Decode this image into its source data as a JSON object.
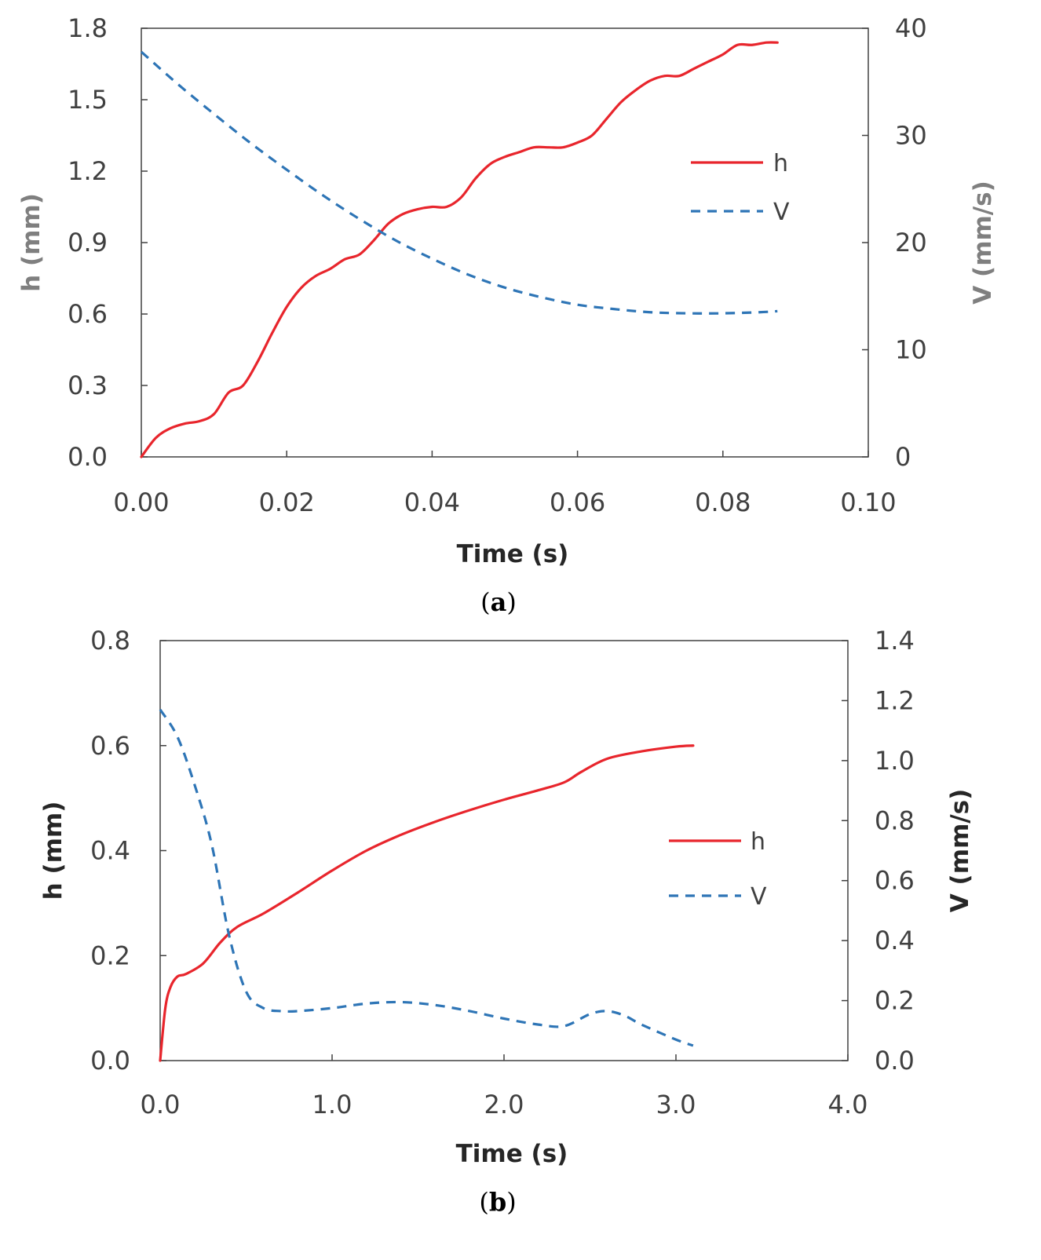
{
  "chart_data": [
    {
      "id": "a",
      "type": "line",
      "caption_letter": "a",
      "xlabel": "Time (s)",
      "ylabel_left": "h (mm)",
      "ylabel_right": "V (mm/s)",
      "xlim": [
        0,
        0.1
      ],
      "ylim_left": [
        0,
        1.8
      ],
      "ylim_right": [
        0,
        40
      ],
      "x_ticks": [
        "0.00",
        "0.02",
        "0.04",
        "0.06",
        "0.08",
        "0.10"
      ],
      "y_left_ticks": [
        "0.0",
        "0.3",
        "0.6",
        "0.9",
        "1.2",
        "1.5",
        "1.8"
      ],
      "y_right_ticks": [
        "0",
        "10",
        "20",
        "30",
        "40"
      ],
      "legend_position": "center-right",
      "axis_label_color": "#7f7f7f",
      "series": [
        {
          "name": "h",
          "axis": "left",
          "color": "#e8252c",
          "style": "solid",
          "x": [
            0,
            0.002,
            0.004,
            0.006,
            0.008,
            0.01,
            0.012,
            0.014,
            0.016,
            0.018,
            0.02,
            0.022,
            0.024,
            0.026,
            0.028,
            0.03,
            0.032,
            0.034,
            0.036,
            0.038,
            0.04,
            0.042,
            0.044,
            0.046,
            0.048,
            0.05,
            0.052,
            0.054,
            0.056,
            0.058,
            0.06,
            0.062,
            0.064,
            0.066,
            0.068,
            0.07,
            0.072,
            0.074,
            0.076,
            0.078,
            0.08,
            0.082,
            0.084,
            0.086,
            0.0875
          ],
          "values": [
            0,
            0.08,
            0.12,
            0.14,
            0.15,
            0.18,
            0.27,
            0.3,
            0.4,
            0.52,
            0.63,
            0.71,
            0.76,
            0.79,
            0.83,
            0.85,
            0.91,
            0.98,
            1.02,
            1.04,
            1.05,
            1.05,
            1.09,
            1.17,
            1.23,
            1.26,
            1.28,
            1.3,
            1.3,
            1.3,
            1.32,
            1.35,
            1.42,
            1.49,
            1.54,
            1.58,
            1.6,
            1.6,
            1.63,
            1.66,
            1.69,
            1.73,
            1.73,
            1.74,
            1.74
          ]
        },
        {
          "name": "V",
          "axis": "right",
          "color": "#2e75b6",
          "style": "dashed",
          "x": [
            0,
            0.005,
            0.01,
            0.015,
            0.02,
            0.025,
            0.03,
            0.035,
            0.04,
            0.045,
            0.05,
            0.055,
            0.06,
            0.065,
            0.07,
            0.075,
            0.08,
            0.085,
            0.0875
          ],
          "values": [
            37.8,
            34.8,
            32.0,
            29.3,
            26.8,
            24.4,
            22.2,
            20.2,
            18.5,
            17.0,
            15.8,
            14.9,
            14.2,
            13.8,
            13.5,
            13.4,
            13.4,
            13.5,
            13.6
          ]
        }
      ]
    },
    {
      "id": "b",
      "type": "line",
      "caption_letter": "b",
      "xlabel": "Time (s)",
      "ylabel_left": "h (mm)",
      "ylabel_right": "V (mm/s)",
      "xlim": [
        0,
        4.0
      ],
      "ylim_left": [
        0,
        0.8
      ],
      "ylim_right": [
        0,
        1.4
      ],
      "x_ticks": [
        "0.0",
        "1.0",
        "2.0",
        "3.0",
        "4.0"
      ],
      "y_left_ticks": [
        "0.0",
        "0.2",
        "0.4",
        "0.6",
        "0.8"
      ],
      "y_right_ticks": [
        "0.0",
        "0.2",
        "0.4",
        "0.6",
        "0.8",
        "1.0",
        "1.2",
        "1.4"
      ],
      "legend_position": "center-right",
      "axis_label_color": "#262626",
      "series": [
        {
          "name": "h",
          "axis": "left",
          "color": "#e8252c",
          "style": "solid",
          "x": [
            0,
            0.03,
            0.06,
            0.1,
            0.15,
            0.25,
            0.35,
            0.45,
            0.6,
            0.8,
            1.0,
            1.2,
            1.4,
            1.6,
            1.8,
            2.0,
            2.2,
            2.35,
            2.45,
            2.6,
            2.8,
            3.0,
            3.1
          ],
          "values": [
            0,
            0.1,
            0.14,
            0.16,
            0.165,
            0.185,
            0.225,
            0.255,
            0.28,
            0.32,
            0.362,
            0.4,
            0.43,
            0.455,
            0.477,
            0.497,
            0.515,
            0.53,
            0.55,
            0.575,
            0.589,
            0.598,
            0.6
          ]
        },
        {
          "name": "V",
          "axis": "right",
          "color": "#2e75b6",
          "style": "dashed",
          "x": [
            0,
            0.1,
            0.2,
            0.3,
            0.4,
            0.5,
            0.6,
            0.7,
            0.8,
            1.0,
            1.2,
            1.4,
            1.6,
            1.8,
            2.0,
            2.2,
            2.35,
            2.5,
            2.6,
            2.7,
            2.8,
            3.0,
            3.1
          ],
          "values": [
            1.17,
            1.08,
            0.92,
            0.72,
            0.42,
            0.23,
            0.175,
            0.165,
            0.165,
            0.175,
            0.19,
            0.195,
            0.185,
            0.165,
            0.14,
            0.12,
            0.115,
            0.155,
            0.165,
            0.15,
            0.12,
            0.07,
            0.05
          ]
        }
      ]
    }
  ]
}
